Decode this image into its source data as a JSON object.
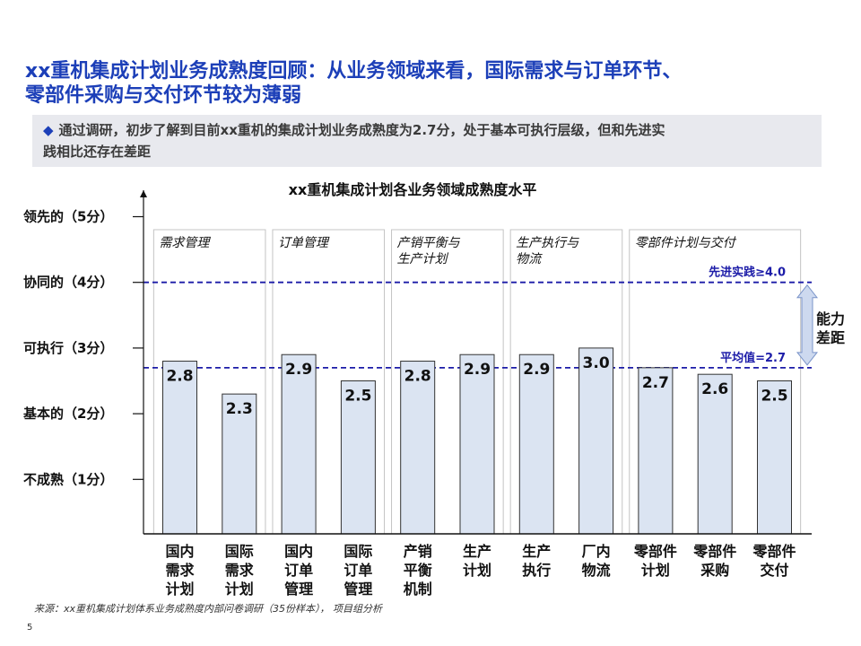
{
  "title_line1": "xx重机集成计划业务成熟度回顾：从业务领域来看，国际需求与订单环节、",
  "title_line2": "零部件采购与交付环节较为薄弱",
  "summary_line1": "通过调研，初步了解到目前xx重机的集成计划业务成熟度为2.7分，处于基本可执行层级，但和先进实",
  "summary_line2": "践相比还存在差距",
  "source": "来源：xx重机集成计划体系业务成熟度内部问卷调研（35份样本），  项目组分析",
  "page_number": "5",
  "colors": {
    "title": "#1c3fb8",
    "bar_fill": "#dbe4f2",
    "bar_stroke": "#333333",
    "reference_line": "#1c1ca8"
  },
  "chart_data": {
    "type": "bar",
    "title": "xx重机集成计划各业务领域成熟度水平",
    "categories": [
      "国内需求计划",
      "国际需求计划",
      "国内订单管理",
      "国际订单管理",
      "产销平衡机制",
      "生产计划",
      "生产执行",
      "厂内物流",
      "零部件计划",
      "零部件采购",
      "零部件交付"
    ],
    "category_labels": [
      [
        "国内",
        "需求",
        "计划"
      ],
      [
        "国际",
        "需求",
        "计划"
      ],
      [
        "国内",
        "订单",
        "管理"
      ],
      [
        "国际",
        "订单",
        "管理"
      ],
      [
        "产销",
        "平衡",
        "机制"
      ],
      [
        "生产",
        "计划"
      ],
      [
        "生产",
        "执行"
      ],
      [
        "厂内",
        "物流"
      ],
      [
        "零部件",
        "计划"
      ],
      [
        "零部件",
        "采购"
      ],
      [
        "零部件",
        "交付"
      ]
    ],
    "values": [
      2.8,
      2.3,
      2.9,
      2.5,
      2.8,
      2.9,
      2.9,
      3.0,
      2.7,
      2.6,
      2.5
    ],
    "value_labels": [
      "2.8",
      "2.3",
      "2.9",
      "2.5",
      "2.8",
      "2.9",
      "2.9",
      "3.0",
      "2.7",
      "2.6",
      "2.5"
    ],
    "ylim": [
      0,
      5.5
    ],
    "y_ticks": [
      {
        "value": 1,
        "label": "不成熟（1分）"
      },
      {
        "value": 2,
        "label": "基本的（2分）"
      },
      {
        "value": 3,
        "label": "可执行（3分）"
      },
      {
        "value": 4,
        "label": "协同的（4分）"
      },
      {
        "value": 5,
        "label": "领先的（5分）"
      }
    ],
    "groups": [
      {
        "name_lines": [
          "需求管理"
        ],
        "first": 0,
        "last": 1
      },
      {
        "name_lines": [
          "订单管理"
        ],
        "first": 2,
        "last": 3
      },
      {
        "name_lines": [
          "产销平衡与",
          "生产计划"
        ],
        "first": 4,
        "last": 5
      },
      {
        "name_lines": [
          "生产执行与",
          "物流"
        ],
        "first": 6,
        "last": 7
      },
      {
        "name_lines": [
          "零部件计划与交付"
        ],
        "first": 8,
        "last": 10
      }
    ],
    "reference_lines": [
      {
        "value": 4.0,
        "label": "先进实践≥4.0"
      },
      {
        "value": 2.7,
        "label": "平均值=2.7"
      }
    ],
    "gap_label": [
      "能力",
      "差距"
    ]
  }
}
